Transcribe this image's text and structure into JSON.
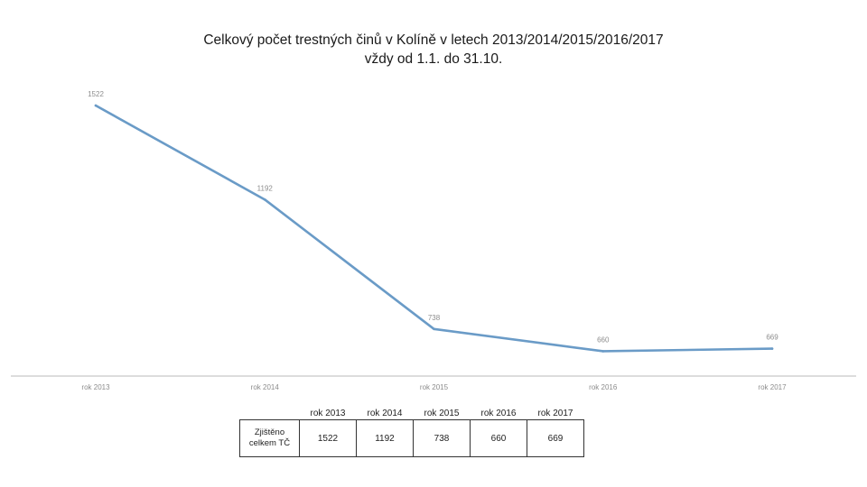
{
  "title_line1": "Celkový počet trestných činů v Kolíně v letech 2013/2014/2015/2016/2017",
  "title_line2": "vždy od 1.1. do 31.10.",
  "colors": {
    "line": "#6a9bc7",
    "axis": "#d0d0d0",
    "label": "#8c8c8c"
  },
  "chart_data": {
    "type": "line",
    "categories": [
      "rok 2013",
      "rok 2014",
      "rok 2015",
      "rok 2016",
      "rok 2017"
    ],
    "data_labels": [
      "1522",
      "1192",
      "738",
      "660",
      "669"
    ],
    "series": [
      {
        "name": "Zjištěno celkem TČ",
        "values": [
          1522,
          1192,
          738,
          660,
          669
        ]
      }
    ],
    "ylim": [
      0,
      1600
    ],
    "legend": "none"
  },
  "table": {
    "headers": [
      "rok 2013",
      "rok 2014",
      "rok 2015",
      "rok 2016",
      "rok 2017"
    ],
    "row_label_line1": "Zjištěno",
    "row_label_line2": "celkem TČ",
    "values": [
      "1522",
      "1192",
      "738",
      "660",
      "669"
    ]
  }
}
